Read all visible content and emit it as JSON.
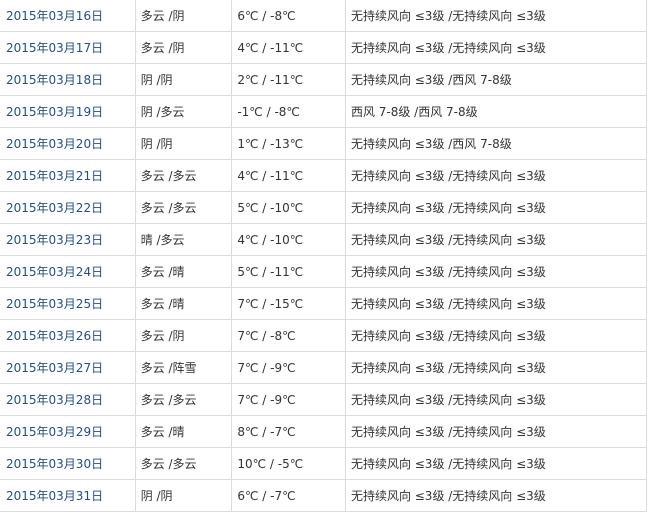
{
  "link_color": "#1f4e8c",
  "rows": [
    {
      "date": "2015年03月16日",
      "weather": "多云 /阴",
      "temp": "6℃ / -8℃",
      "wind": "无持续风向 ≤3级 /无持续风向 ≤3级"
    },
    {
      "date": "2015年03月17日",
      "weather": "多云 /阴",
      "temp": "4℃ / -11℃",
      "wind": "无持续风向 ≤3级 /无持续风向 ≤3级"
    },
    {
      "date": "2015年03月18日",
      "weather": "阴 /阴",
      "temp": "2℃ / -11℃",
      "wind": "无持续风向 ≤3级 /西风 7-8级"
    },
    {
      "date": "2015年03月19日",
      "weather": "阴 /多云",
      "temp": "-1℃ / -8℃",
      "wind": "西风 7-8级 /西风 7-8级"
    },
    {
      "date": "2015年03月20日",
      "weather": "阴 /阴",
      "temp": "1℃ / -13℃",
      "wind": "无持续风向 ≤3级 /西风 7-8级"
    },
    {
      "date": "2015年03月21日",
      "weather": "多云 /多云",
      "temp": "4℃ / -11℃",
      "wind": "无持续风向 ≤3级 /无持续风向 ≤3级"
    },
    {
      "date": "2015年03月22日",
      "weather": "多云 /多云",
      "temp": "5℃ / -10℃",
      "wind": "无持续风向 ≤3级 /无持续风向 ≤3级"
    },
    {
      "date": "2015年03月23日",
      "weather": "晴 /多云",
      "temp": "4℃ / -10℃",
      "wind": "无持续风向 ≤3级 /无持续风向 ≤3级"
    },
    {
      "date": "2015年03月24日",
      "weather": "多云 /晴",
      "temp": "5℃ / -11℃",
      "wind": "无持续风向 ≤3级 /无持续风向 ≤3级"
    },
    {
      "date": "2015年03月25日",
      "weather": "多云 /晴",
      "temp": "7℃ / -15℃",
      "wind": "无持续风向 ≤3级 /无持续风向 ≤3级"
    },
    {
      "date": "2015年03月26日",
      "weather": "多云 /阴",
      "temp": "7℃ / -8℃",
      "wind": "无持续风向 ≤3级 /无持续风向 ≤3级"
    },
    {
      "date": "2015年03月27日",
      "weather": "多云 /阵雪",
      "temp": "7℃ / -9℃",
      "wind": "无持续风向 ≤3级 /无持续风向 ≤3级"
    },
    {
      "date": "2015年03月28日",
      "weather": "多云 /多云",
      "temp": "7℃ / -9℃",
      "wind": "无持续风向 ≤3级 /无持续风向 ≤3级"
    },
    {
      "date": "2015年03月29日",
      "weather": "多云 /晴",
      "temp": "8℃ / -7℃",
      "wind": "无持续风向 ≤3级 /无持续风向 ≤3级"
    },
    {
      "date": "2015年03月30日",
      "weather": "多云 /多云",
      "temp": "10℃ / -5℃",
      "wind": "无持续风向 ≤3级 /无持续风向 ≤3级"
    },
    {
      "date": "2015年03月31日",
      "weather": "阴 /阴",
      "temp": "6℃ / -7℃",
      "wind": "无持续风向 ≤3级 /无持续风向 ≤3级"
    }
  ]
}
